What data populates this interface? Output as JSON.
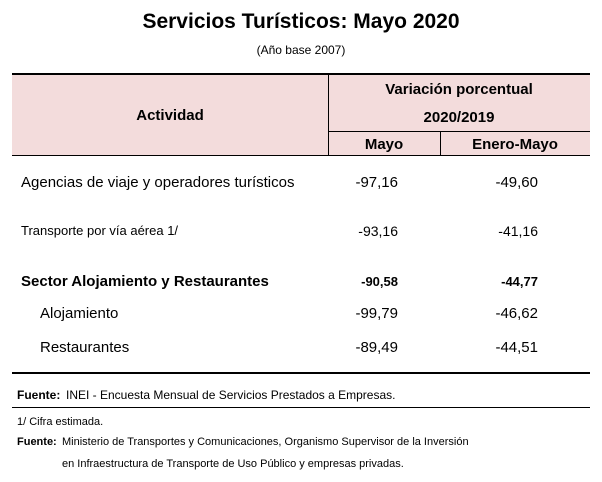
{
  "header": {
    "title": "Servicios Turísticos: Mayo 2020",
    "subtitle": "(Año base 2007)"
  },
  "table": {
    "activity_header": "Actividad",
    "group_header": "Variación porcentual",
    "period_header": "2020/2019",
    "columns": [
      "Mayo",
      "Enero-Mayo"
    ],
    "rows": [
      [
        "Agencias de viaje y operadores turísticos",
        "-97,16",
        "-49,60"
      ],
      [
        "Transporte por vía aérea 1/",
        "-93,16",
        "-41,16"
      ],
      [
        "Sector Alojamiento y Restaurantes",
        "-90,58",
        "-44,77"
      ],
      [
        "Alojamiento",
        "-99,79",
        "-46,62"
      ],
      [
        "Restaurantes",
        "-89,49",
        "-44,51"
      ]
    ]
  },
  "notes": {
    "source1": {
      "label": "Fuente:",
      "text": "INEI - Encuesta Mensual de Servicios Prestados a Empresas."
    },
    "footnote": "1/ Cifra estimada.",
    "source2": {
      "label": "Fuente:",
      "lines": [
        "Ministerio de Transportes y Comunicaciones, Organismo Supervisor de la Inversión",
        "en Infraestructura de Transporte de Uso Público y empresas privadas."
      ]
    }
  }
}
